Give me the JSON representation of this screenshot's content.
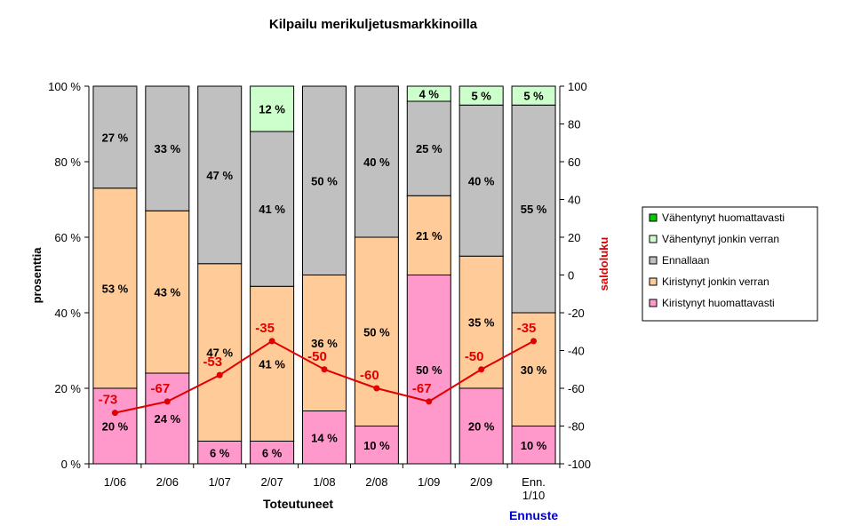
{
  "chart_data": {
    "type": "bar",
    "stacked": true,
    "title": "Kilpailu merikuljetusmarkkinoilla",
    "ylabel": "prosenttia",
    "y2label": "saldoluku",
    "ylim": [
      0,
      100
    ],
    "y2lim": [
      -100,
      100
    ],
    "yticks": [
      "0 %",
      "20 %",
      "40 %",
      "60 %",
      "80 %",
      "100 %"
    ],
    "y2ticks": [
      "-100",
      "-80",
      "-60",
      "-40",
      "-20",
      "0",
      "20",
      "40",
      "60",
      "80",
      "100"
    ],
    "categories": [
      "1/06",
      "2/06",
      "1/07",
      "2/07",
      "1/08",
      "2/08",
      "1/09",
      "2/09",
      "Enn. 1/10"
    ],
    "category_groups": [
      {
        "label": "Toteutuneet",
        "color": "#000000"
      },
      {
        "label": "Ennuste",
        "color": "#0000cc"
      }
    ],
    "series": [
      {
        "name": "Kiristynyt huomattavasti",
        "color": "#ff99cc",
        "values": [
          20,
          24,
          6,
          6,
          14,
          10,
          50,
          20,
          10
        ],
        "labels": [
          "20 %",
          "24 %",
          "6 %",
          "6 %",
          "14 %",
          "10 %",
          "50 %",
          "20 %",
          "10 %"
        ]
      },
      {
        "name": "Kiristynyt jonkin verran",
        "color": "#ffcc99",
        "values": [
          53,
          43,
          47,
          41,
          36,
          50,
          21,
          35,
          30
        ],
        "labels": [
          "53 %",
          "43 %",
          "47 %",
          "41 %",
          "36 %",
          "50 %",
          "21 %",
          "35 %",
          "30 %"
        ]
      },
      {
        "name": "Ennallaan",
        "color": "#c0c0c0",
        "values": [
          27,
          33,
          47,
          41,
          50,
          40,
          25,
          40,
          55
        ],
        "labels": [
          "27 %",
          "33 %",
          "47 %",
          "41 %",
          "50 %",
          "40 %",
          "25 %",
          "40 %",
          "55 %"
        ]
      },
      {
        "name": "Vähentynyt jonkin verran",
        "color": "#ccffcc",
        "values": [
          0,
          0,
          0,
          12,
          0,
          0,
          4,
          5,
          5
        ],
        "labels": [
          "",
          "",
          "",
          "12 %",
          "",
          "",
          "4 %",
          "5 %",
          "5 %"
        ]
      },
      {
        "name": "Vähentynyt huomattavasti",
        "color": "#00cc00",
        "values": [
          0,
          0,
          0,
          0,
          0,
          0,
          0,
          0,
          0
        ],
        "labels": [
          "",
          "",
          "",
          "",
          "",
          "",
          "",
          "",
          ""
        ]
      }
    ],
    "line": {
      "color": "#e00000",
      "values": [
        -73,
        -67,
        -53,
        -35,
        -50,
        -60,
        -67,
        -50,
        -35
      ],
      "labels": [
        "-73",
        "-67",
        "-53",
        "-35",
        "-50",
        "-60",
        "-67",
        "-50",
        "-35"
      ]
    },
    "legend_position": "right",
    "legend_order": [
      "Vähentynyt huomattavasti",
      "Vähentynyt jonkin verran",
      "Ennallaan",
      "Kiristynyt jonkin verran",
      "Kiristynyt huomattavasti"
    ]
  }
}
